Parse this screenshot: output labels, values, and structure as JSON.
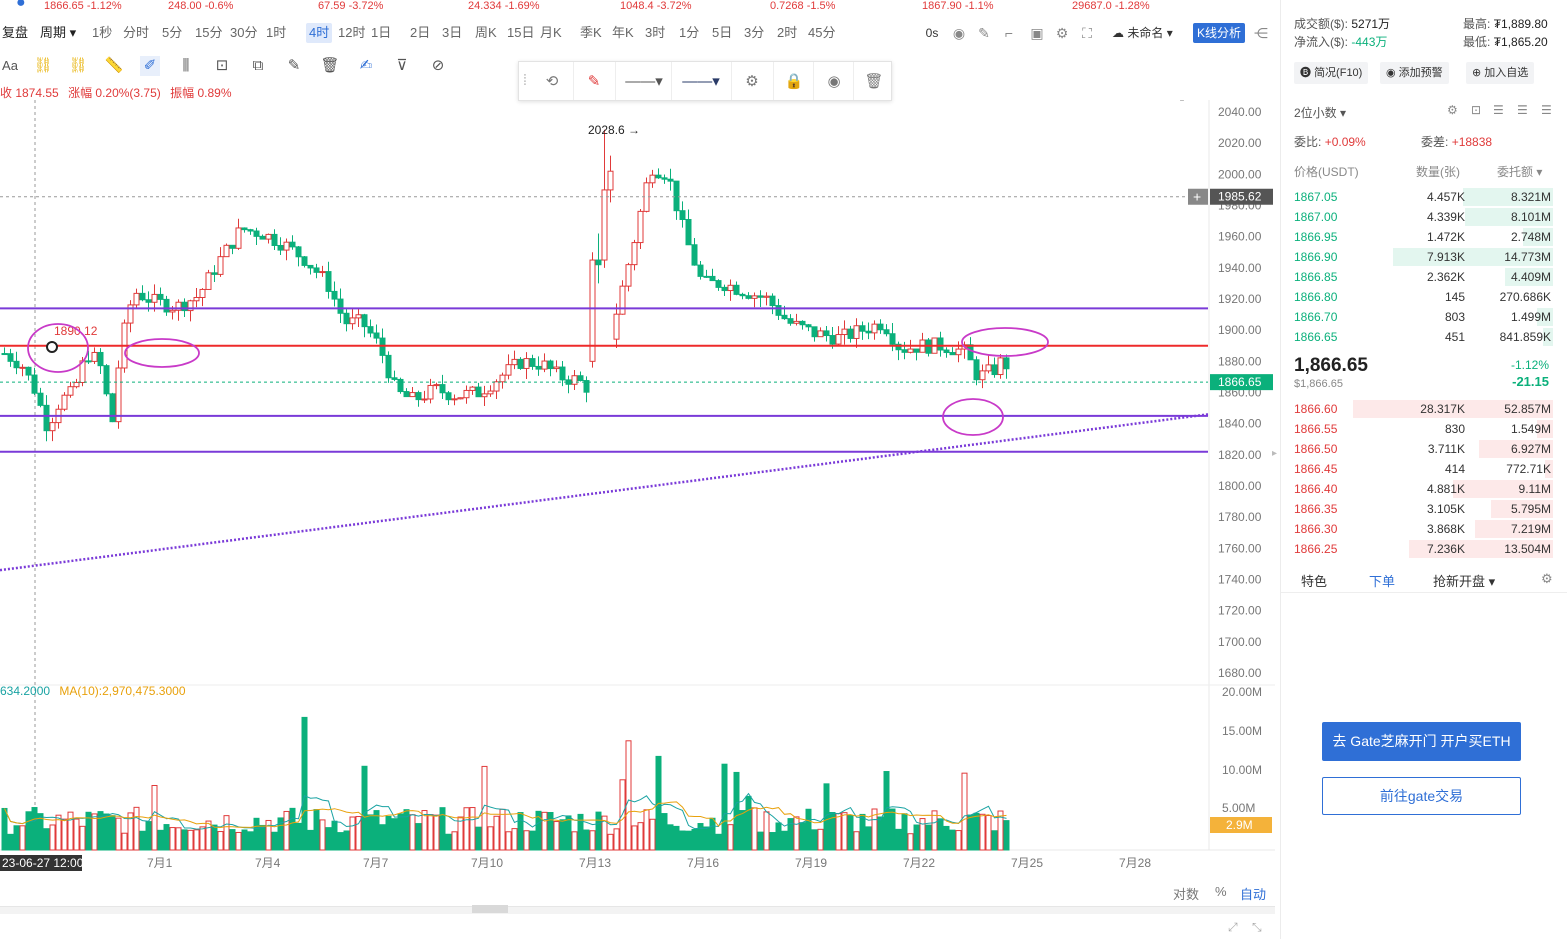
{
  "ticker": [
    {
      "price": "1866.65",
      "change": "-1.12%"
    },
    {
      "price": "248.00",
      "change": "-0.6%"
    },
    {
      "price": "67.59",
      "change": "-3.72%"
    },
    {
      "price": "24.334",
      "change": "-1.69%"
    },
    {
      "price": "1048.4",
      "change": "-3.72%"
    },
    {
      "price": "0.7268",
      "change": "-1.5%"
    },
    {
      "price": "1867.90",
      "change": "-1.1%"
    },
    {
      "price": "29687.0",
      "change": "-1.28%"
    }
  ],
  "toolbar": {
    "fuquan": "复盘",
    "zhouqi": "周期",
    "periods": [
      "1秒",
      "分时",
      "5分",
      "15分",
      "30分",
      "1时",
      "4时",
      "12时",
      "1日",
      "2日",
      "3日",
      "周K",
      "15日",
      "月K",
      "季K",
      "年K",
      "3时",
      "1分",
      "5日",
      "3分",
      "2时",
      "45分"
    ],
    "active_period": "4时",
    "interval_label": "0s",
    "layout_name": "未命名",
    "kline_btn": "K线分析"
  },
  "drawing": {
    "font_btn": "Aa"
  },
  "info": {
    "close": "收 1874.55",
    "change": "涨幅 0.20%(3.75)",
    "amplitude": "振幅 0.89%"
  },
  "volume_info": {
    "vol": "634.2000",
    "ma10": "MA(10):2,970,475.3000"
  },
  "chart_data": {
    "type": "candlestick",
    "price_axis": {
      "min": 1680,
      "max": 2040,
      "ticks": [
        "2040.00",
        "2020.00",
        "2000.00",
        "1980.00",
        "1960.00",
        "1940.00",
        "1920.00",
        "1900.00",
        "1880.00",
        "1860.00",
        "1840.00",
        "1820.00",
        "1800.00",
        "1780.00",
        "1760.00",
        "1740.00",
        "1720.00",
        "1700.00",
        "1680.00"
      ]
    },
    "volume_axis": {
      "ticks": [
        "20.00M",
        "15.00M",
        "10.00M",
        "5.00M"
      ]
    },
    "x_ticks": [
      "23-06-27 12:00",
      "7月1",
      "7月4",
      "7月7",
      "7月10",
      "7月13",
      "7月16",
      "7月19",
      "7月22",
      "7月25",
      "7月28"
    ],
    "current_price": "1866.65",
    "current_volume": "2.9M",
    "hover_price": "1985.62",
    "high_annotation": "2028.6 →",
    "level_annotation": "1890.12",
    "horizontal_levels": [
      1914,
      1890,
      1845,
      1822
    ],
    "trendline": {
      "from": [
        0,
        1746
      ],
      "to": [
        1,
        1846
      ]
    },
    "series": "OHLC 4h candles 2023-06-27 to 2023-07-24, range 1815-2028.6"
  },
  "bottom": {
    "log": "对数",
    "pct": "%",
    "auto": "自动"
  },
  "panel": {
    "turnover_label": "成交额($):",
    "turnover": "5271万",
    "netflow_label": "净流入($):",
    "netflow": "-443万",
    "high_label": "最高:",
    "high": "₮1,889.80",
    "low_label": "最低:",
    "low": "₮1,865.20",
    "btn_profile": "简况(F10)",
    "btn_alert": "添加预警",
    "btn_watch": "加入自选",
    "decimals": "2位小数",
    "weibi_label": "委比:",
    "weibi": "+0.09%",
    "weicha_label": "委差:",
    "weicha": "+18838",
    "col_price": "价格(USDT)",
    "col_qty": "数量(张)",
    "col_amt": "委托额",
    "asks": [
      {
        "price": "1867.05",
        "qty": "4.457K",
        "amt": "8.321M",
        "w": 0.45
      },
      {
        "price": "1867.00",
        "qty": "4.339K",
        "amt": "8.101M",
        "w": 0.44
      },
      {
        "price": "1866.95",
        "qty": "1.472K",
        "amt": "2.748M",
        "w": 0.15
      },
      {
        "price": "1866.90",
        "qty": "7.913K",
        "amt": "14.773M",
        "w": 0.8
      },
      {
        "price": "1866.85",
        "qty": "2.362K",
        "amt": "4.409M",
        "w": 0.24
      },
      {
        "price": "1866.80",
        "qty": "145",
        "amt": "270.686K",
        "w": 0.0
      },
      {
        "price": "1866.70",
        "qty": "803",
        "amt": "1.499M",
        "w": 0.08
      },
      {
        "price": "1866.65",
        "qty": "451",
        "amt": "841.859K",
        "w": 0.05
      }
    ],
    "last_price": "1,866.65",
    "last_usd": "$1,866.65",
    "last_pct": "-1.12%",
    "last_chg": "-21.15",
    "bids": [
      {
        "price": "1866.60",
        "qty": "28.317K",
        "amt": "52.857M",
        "w": 1.0
      },
      {
        "price": "1866.55",
        "qty": "830",
        "amt": "1.549M",
        "w": 0.08
      },
      {
        "price": "1866.50",
        "qty": "3.711K",
        "amt": "6.927M",
        "w": 0.37
      },
      {
        "price": "1866.45",
        "qty": "414",
        "amt": "772.71K",
        "w": 0.04
      },
      {
        "price": "1866.40",
        "qty": "4.881K",
        "amt": "9.11M",
        "w": 0.5
      },
      {
        "price": "1866.35",
        "qty": "3.105K",
        "amt": "5.795M",
        "w": 0.31
      },
      {
        "price": "1866.30",
        "qty": "3.868K",
        "amt": "7.219M",
        "w": 0.39
      },
      {
        "price": "1866.25",
        "qty": "7.236K",
        "amt": "13.504M",
        "w": 0.72
      }
    ],
    "tab_feature": "特色",
    "tab_order": "下单",
    "tab_new": "抢新开盘",
    "cta_primary": "去 Gate芝麻开门 开户买ETH",
    "cta_secondary": "前往gate交易"
  },
  "colors": {
    "up": "#e03a3a",
    "down": "#0bb07b",
    "accent": "#2f6fd6",
    "purple_line": "#8a2be2",
    "red_line": "#ee2a2a"
  }
}
